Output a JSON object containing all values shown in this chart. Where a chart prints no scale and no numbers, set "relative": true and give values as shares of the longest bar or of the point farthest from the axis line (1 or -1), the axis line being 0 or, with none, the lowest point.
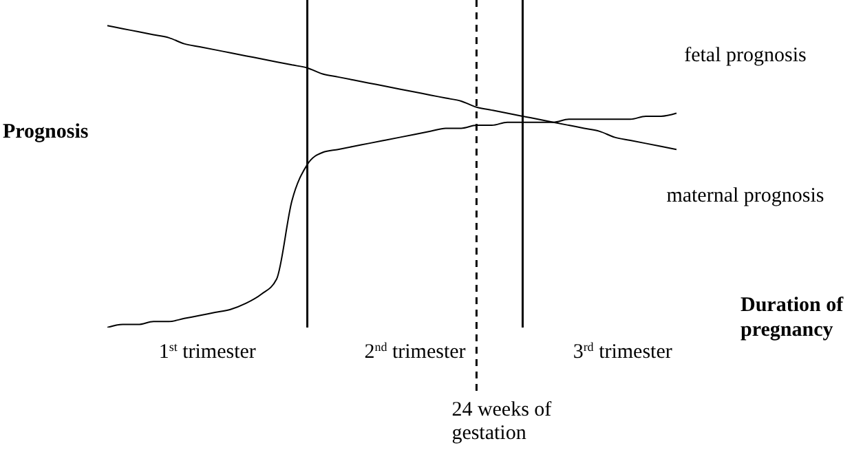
{
  "chart_data": {
    "type": "line",
    "relative": true,
    "ylabel": "Prognosis",
    "xlabel": "Duration of pregnancy",
    "grid": false,
    "legend": false,
    "marker": "none",
    "line_style": "solid",
    "categories": [
      null,
      null,
      null,
      null,
      null,
      null,
      null,
      null,
      null,
      null,
      null,
      null,
      null,
      null,
      null,
      null,
      null,
      null,
      null,
      null,
      null,
      null,
      null,
      null,
      null,
      null,
      null,
      null,
      null,
      null,
      null,
      null,
      null,
      null,
      null,
      null,
      null,
      null,
      null,
      null,
      null
    ],
    "series": [
      {
        "name": "fetal prognosis",
        "color": "#000000",
        "values": [
          0,
          0.01,
          0.01,
          0.02,
          0.02,
          0.03,
          0.04,
          0.05,
          0.06,
          0.08,
          0.11,
          0.16,
          0.42,
          0.54,
          0.58,
          0.59,
          0.6,
          0.61,
          0.62,
          0.63,
          0.64,
          0.65,
          0.66,
          0.66,
          0.67,
          0.67,
          0.68,
          0.68,
          0.68,
          0.68,
          0.69,
          0.69,
          0.69,
          0.69,
          0.69,
          0.7,
          0.7,
          0.71,
          null,
          null,
          null
        ]
      },
      {
        "name": "maternal prognosis",
        "color": "#000000",
        "values": [
          1,
          0.99,
          0.98,
          0.97,
          0.96,
          0.94,
          0.93,
          0.92,
          0.91,
          0.9,
          0.89,
          0.88,
          0.87,
          0.86,
          0.84,
          0.83,
          0.82,
          0.81,
          0.8,
          0.79,
          0.78,
          0.77,
          0.76,
          0.75,
          0.73,
          0.72,
          0.71,
          0.7,
          0.69,
          0.68,
          0.67,
          0.66,
          0.65,
          0.63,
          0.62,
          0.61,
          0.6,
          0.59,
          null,
          null,
          null
        ]
      }
    ],
    "annotations": [
      "1$^{st}$ trimester",
      "2$^{nd}$ trimester",
      "3$^{rd}$ trimester",
      "24 weeks of gestation"
    ]
  }
}
